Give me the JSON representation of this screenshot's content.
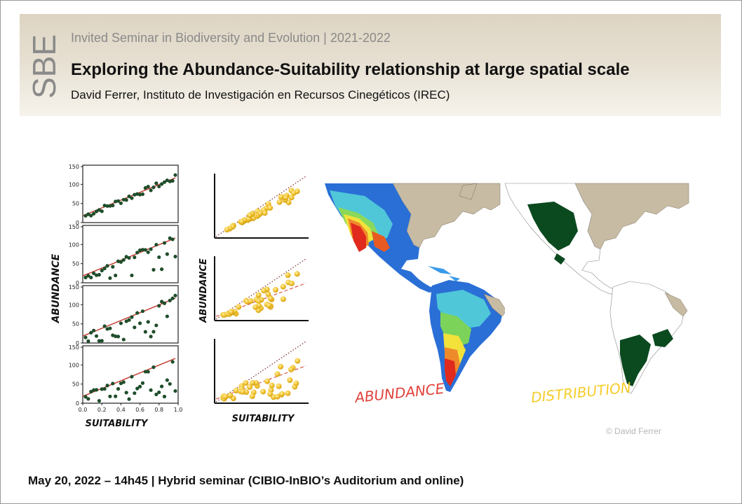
{
  "header": {
    "logo_text": "SBE",
    "series": "Invited Seminar in Biodiversity and Evolution | 2021-2022",
    "title": "Exploring the Abundance-Suitability relationship at large spatial scale",
    "speaker": "David Ferrer, Instituto de Investigación en Recursos Cinegéticos (IREC)"
  },
  "figure": {
    "left_plots": {
      "y_ticks": [
        "150",
        "100",
        "50",
        "0"
      ],
      "x_ticks": [
        "0.0",
        "0.2",
        "0.4",
        "0.6",
        "0.8",
        "1.0"
      ],
      "ylabel": "ABUNDANCE",
      "xlabel": "SUITABILITY",
      "point_color": "#1f4d2a",
      "line_color": "#c0392b"
    },
    "middle_plots": {
      "ylabel": "ABUNDANCE",
      "xlabel": "SUITABILITY",
      "point_color": "#f2c230"
    },
    "maps": {
      "abundance_label": "ABUNDANCE",
      "distribution_label": "DISTRIBUTION",
      "abundance_label_color": "#e0413a",
      "distribution_label_color": "#f5cc2a",
      "distribution_fill": "#0b4a1f",
      "land_color": "#c7bba3"
    },
    "credit": "© David Ferrer"
  },
  "footer": {
    "text": "May 20, 2022 – 14h45 | Hybrid seminar (CIBIO-InBIO’s Auditorium and online)"
  }
}
